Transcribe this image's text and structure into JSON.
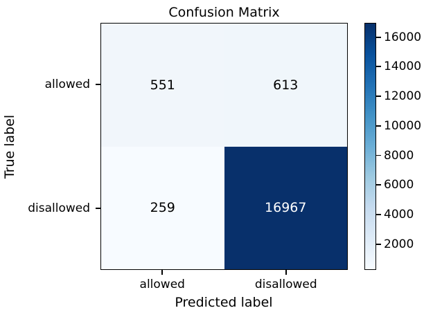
{
  "figure": {
    "background_color": "#ffffff"
  },
  "chart_data": {
    "type": "heatmap",
    "title": "Confusion Matrix",
    "xlabel": "Predicted label",
    "ylabel": "True label",
    "x_tick_labels": [
      "allowed",
      "disallowed"
    ],
    "y_tick_labels": [
      "allowed",
      "disallowed"
    ],
    "matrix": [
      [
        551,
        613
      ],
      [
        259,
        16967
      ]
    ],
    "vmin": 259,
    "vmax": 16967,
    "colormap": "Blues",
    "grid": false,
    "legend_position": "right-colorbar",
    "cell_colors": [
      [
        "#f1f6fb",
        "#f0f6fb"
      ],
      [
        "#f7fbff",
        "#08306b"
      ]
    ],
    "cell_text_colors": [
      [
        "#000000",
        "#000000"
      ],
      [
        "#000000",
        "#ffffff"
      ]
    ],
    "colorbar_ticks": [
      2000,
      4000,
      6000,
      8000,
      10000,
      12000,
      14000,
      16000
    ],
    "colorbar_gradient": [
      {
        "pos": 0.0,
        "color": "#f7fbff"
      },
      {
        "pos": 0.125,
        "color": "#deebf7"
      },
      {
        "pos": 0.25,
        "color": "#c6dbef"
      },
      {
        "pos": 0.375,
        "color": "#9ecae1"
      },
      {
        "pos": 0.5,
        "color": "#6baed6"
      },
      {
        "pos": 0.625,
        "color": "#4292c6"
      },
      {
        "pos": 0.75,
        "color": "#2171b5"
      },
      {
        "pos": 0.875,
        "color": "#08519c"
      },
      {
        "pos": 1.0,
        "color": "#08306b"
      }
    ]
  }
}
